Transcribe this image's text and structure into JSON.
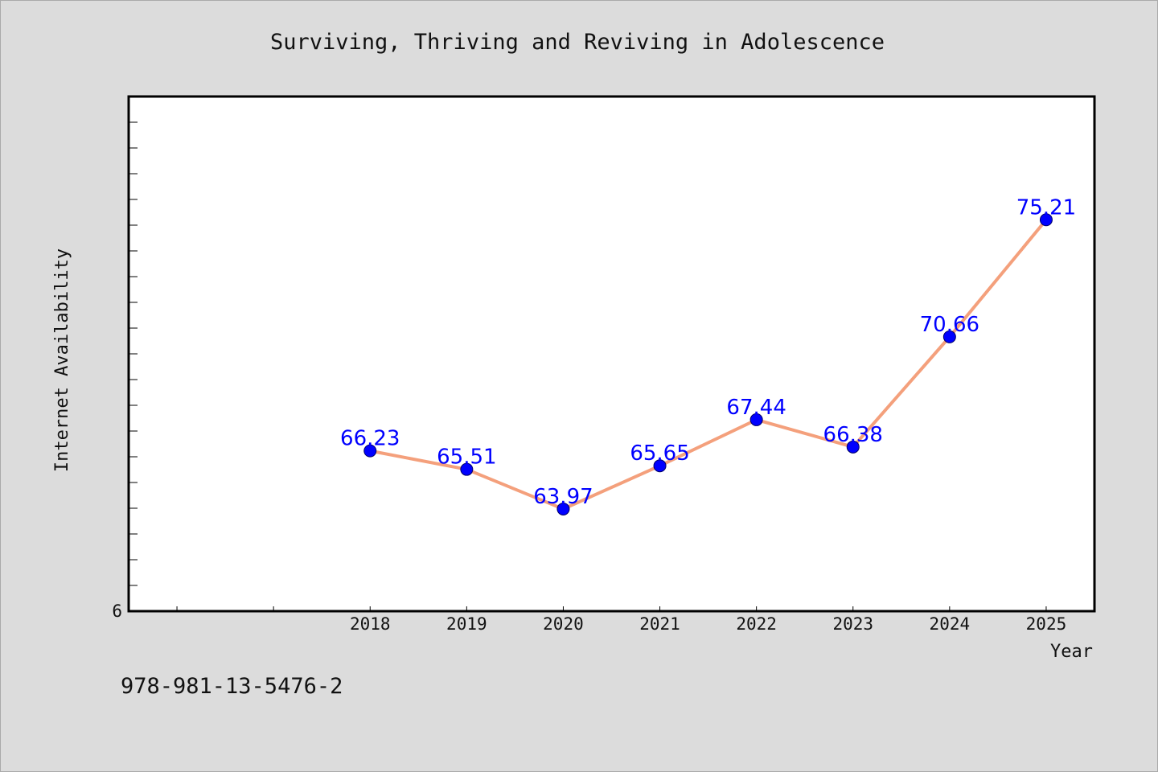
{
  "chart_data": {
    "type": "line",
    "title": "Surviving, Thriving and Reviving in Adolescence",
    "xlabel": "Year",
    "ylabel": "Internet Availability",
    "x": [
      "2018",
      "2019",
      "2020",
      "2021",
      "2022",
      "2023",
      "2024",
      "2025"
    ],
    "series": [
      {
        "values": [
          66.23,
          65.51,
          63.97,
          65.65,
          67.44,
          66.38,
          70.66,
          75.21
        ]
      }
    ],
    "data_labels": [
      "66.23",
      "65.51",
      "63.97",
      "65.65",
      "67.44",
      "66.38",
      "70.66",
      "75.21"
    ],
    "xlim": [
      2015.5,
      2025.5
    ],
    "ylim": [
      60,
      80
    ],
    "y_tick_label": "6",
    "grid": false,
    "legend": "none",
    "colors": {
      "line": "#f4a07c",
      "marker": "#0000ff",
      "label": "#0000ff",
      "background": "#dcdcdc",
      "plot_background": "#ffffff"
    }
  },
  "footer_text": "978-981-13-5476-2"
}
